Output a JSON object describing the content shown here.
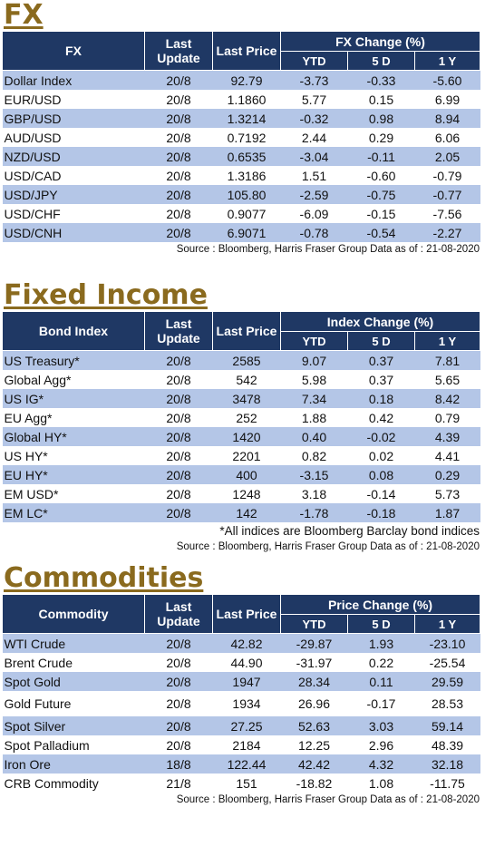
{
  "fx": {
    "title": "FX",
    "h_name": "FX",
    "h_update_1": "Last",
    "h_update_2": "Update",
    "h_price": "Last Price",
    "h_change": "FX Change (%)",
    "h_ytd": "YTD",
    "h_5d": "5 D",
    "h_1y": "1 Y",
    "rows": [
      {
        "name": "Dollar Index",
        "update": "20/8",
        "price": "92.79",
        "ytd": "-3.73",
        "d5": "-0.33",
        "y1": "-5.60"
      },
      {
        "name": "EUR/USD",
        "update": "20/8",
        "price": "1.1860",
        "ytd": "5.77",
        "d5": "0.15",
        "y1": "6.99"
      },
      {
        "name": "GBP/USD",
        "update": "20/8",
        "price": "1.3214",
        "ytd": "-0.32",
        "d5": "0.98",
        "y1": "8.94"
      },
      {
        "name": "AUD/USD",
        "update": "20/8",
        "price": "0.7192",
        "ytd": "2.44",
        "d5": "0.29",
        "y1": "6.06"
      },
      {
        "name": "NZD/USD",
        "update": "20/8",
        "price": "0.6535",
        "ytd": "-3.04",
        "d5": "-0.11",
        "y1": "2.05"
      },
      {
        "name": "USD/CAD",
        "update": "20/8",
        "price": "1.3186",
        "ytd": "1.51",
        "d5": "-0.60",
        "y1": "-0.79"
      },
      {
        "name": "USD/JPY",
        "update": "20/8",
        "price": "105.80",
        "ytd": "-2.59",
        "d5": "-0.75",
        "y1": "-0.77"
      },
      {
        "name": "USD/CHF",
        "update": "20/8",
        "price": "0.9077",
        "ytd": "-6.09",
        "d5": "-0.15",
        "y1": "-7.56"
      },
      {
        "name": "USD/CNH",
        "update": "20/8",
        "price": "6.9071",
        "ytd": "-0.78",
        "d5": "-0.54",
        "y1": "-2.27"
      }
    ],
    "source": "Source : Bloomberg, Harris Fraser Group Data as of : 21-08-2020"
  },
  "fixed": {
    "title": "Fixed Income",
    "h_name": "Bond Index",
    "h_update_1": "Last",
    "h_update_2": "Update",
    "h_price": "Last Price",
    "h_change": "Index Change (%)",
    "h_ytd": "YTD",
    "h_5d": "5 D",
    "h_1y": "1 Y",
    "rows": [
      {
        "name": "US Treasury*",
        "update": "20/8",
        "price": "2585",
        "ytd": "9.07",
        "d5": "0.37",
        "y1": "7.81"
      },
      {
        "name": "Global Agg*",
        "update": "20/8",
        "price": "542",
        "ytd": "5.98",
        "d5": "0.37",
        "y1": "5.65"
      },
      {
        "name": "US IG*",
        "update": "20/8",
        "price": "3478",
        "ytd": "7.34",
        "d5": "0.18",
        "y1": "8.42"
      },
      {
        "name": "EU Agg*",
        "update": "20/8",
        "price": "252",
        "ytd": "1.88",
        "d5": "0.42",
        "y1": "0.79"
      },
      {
        "name": "Global HY*",
        "update": "20/8",
        "price": "1420",
        "ytd": "0.40",
        "d5": "-0.02",
        "y1": "4.39"
      },
      {
        "name": "US HY*",
        "update": "20/8",
        "price": "2201",
        "ytd": "0.82",
        "d5": "0.02",
        "y1": "4.41"
      },
      {
        "name": "EU HY*",
        "update": "20/8",
        "price": "400",
        "ytd": "-3.15",
        "d5": "0.08",
        "y1": "0.29"
      },
      {
        "name": "EM USD*",
        "update": "20/8",
        "price": "1248",
        "ytd": "3.18",
        "d5": "-0.14",
        "y1": "5.73"
      },
      {
        "name": "EM LC*",
        "update": "20/8",
        "price": "142",
        "ytd": "-1.78",
        "d5": "-0.18",
        "y1": "1.87"
      }
    ],
    "note": "*All indices are Bloomberg Barclay bond indices",
    "source": "Source : Bloomberg, Harris Fraser Group Data as of : 21-08-2020"
  },
  "commodities": {
    "title": "Commodities",
    "h_name": "Commodity",
    "h_update_1": "Last",
    "h_update_2": "Update",
    "h_price": "Last Price",
    "h_change": "Price Change (%)",
    "h_ytd": "YTD",
    "h_5d": "5 D",
    "h_1y": "1 Y",
    "rows": [
      {
        "name": "WTI Crude",
        "update": "20/8",
        "price": "42.82",
        "ytd": "-29.87",
        "d5": "1.93",
        "y1": "-23.10"
      },
      {
        "name": "Brent Crude",
        "update": "20/8",
        "price": "44.90",
        "ytd": "-31.97",
        "d5": "0.22",
        "y1": "-25.54"
      },
      {
        "name": "Spot Gold",
        "update": "20/8",
        "price": "1947",
        "ytd": "28.34",
        "d5": "0.11",
        "y1": "29.59"
      },
      {
        "name": "Gold Future",
        "update": "20/8",
        "price": "1934",
        "ytd": "26.96",
        "d5": "-0.17",
        "y1": "28.53"
      },
      {
        "name": "Spot Silver",
        "update": "20/8",
        "price": "27.25",
        "ytd": "52.63",
        "d5": "3.03",
        "y1": "59.14"
      },
      {
        "name": "Spot Palladium",
        "update": "20/8",
        "price": "2184",
        "ytd": "12.25",
        "d5": "2.96",
        "y1": "48.39"
      },
      {
        "name": "Iron Ore",
        "update": "18/8",
        "price": "122.44",
        "ytd": "42.42",
        "d5": "4.32",
        "y1": "32.18"
      },
      {
        "name": "CRB Commodity",
        "update": "21/8",
        "price": "151",
        "ytd": "-18.82",
        "d5": "1.08",
        "y1": "-11.75"
      }
    ],
    "source": "Source : Bloomberg, Harris Fraser Group Data as of : 21-08-2020"
  },
  "colors": {
    "header_bg": "#1f3864",
    "stripe": "#b4c6e7",
    "title": "#8a6a1e"
  }
}
